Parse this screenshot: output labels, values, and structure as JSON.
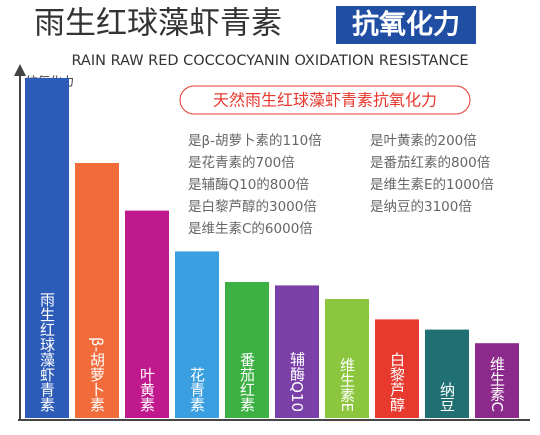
{
  "chart_data": {
    "type": "bar",
    "title": "雨生红球藻虾青素",
    "title_badge": "抗氧化力",
    "subtitle": "RAIN RAW RED COCCOCYANIN  OXIDATION RESISTANCE",
    "y_label": "抗氧化力",
    "callout": "天然雨生红球藻虾青素抗氧化力",
    "annotations": [
      "是β-胡萝卜素的110倍",
      "是花青素的700倍",
      "是辅酶Q10的800倍",
      "是白黎芦醇的3000倍",
      "是维生素C的6000倍",
      "是叶黄素的200倍",
      "是番茄红素的800倍",
      "是维生素E的1000倍",
      "是纳豆的3100倍"
    ],
    "categories": [
      "雨生红球藻虾青素",
      "β-胡萝卜素",
      "叶黄素",
      "花青素",
      "番茄红素",
      "辅酶Q10",
      "维生素E",
      "白黎芦醇",
      "纳豆",
      "维生素C"
    ],
    "values": [
      100,
      75,
      61,
      49,
      40,
      39,
      35,
      29,
      26,
      22
    ],
    "colors": [
      "#2c5bb8",
      "#f26b3a",
      "#c0198d",
      "#3a9fe0",
      "#3cb043",
      "#7b3fa8",
      "#8cc63f",
      "#e8392e",
      "#1f6f73",
      "#8b2a8a"
    ],
    "ylim": [
      0,
      100
    ]
  }
}
